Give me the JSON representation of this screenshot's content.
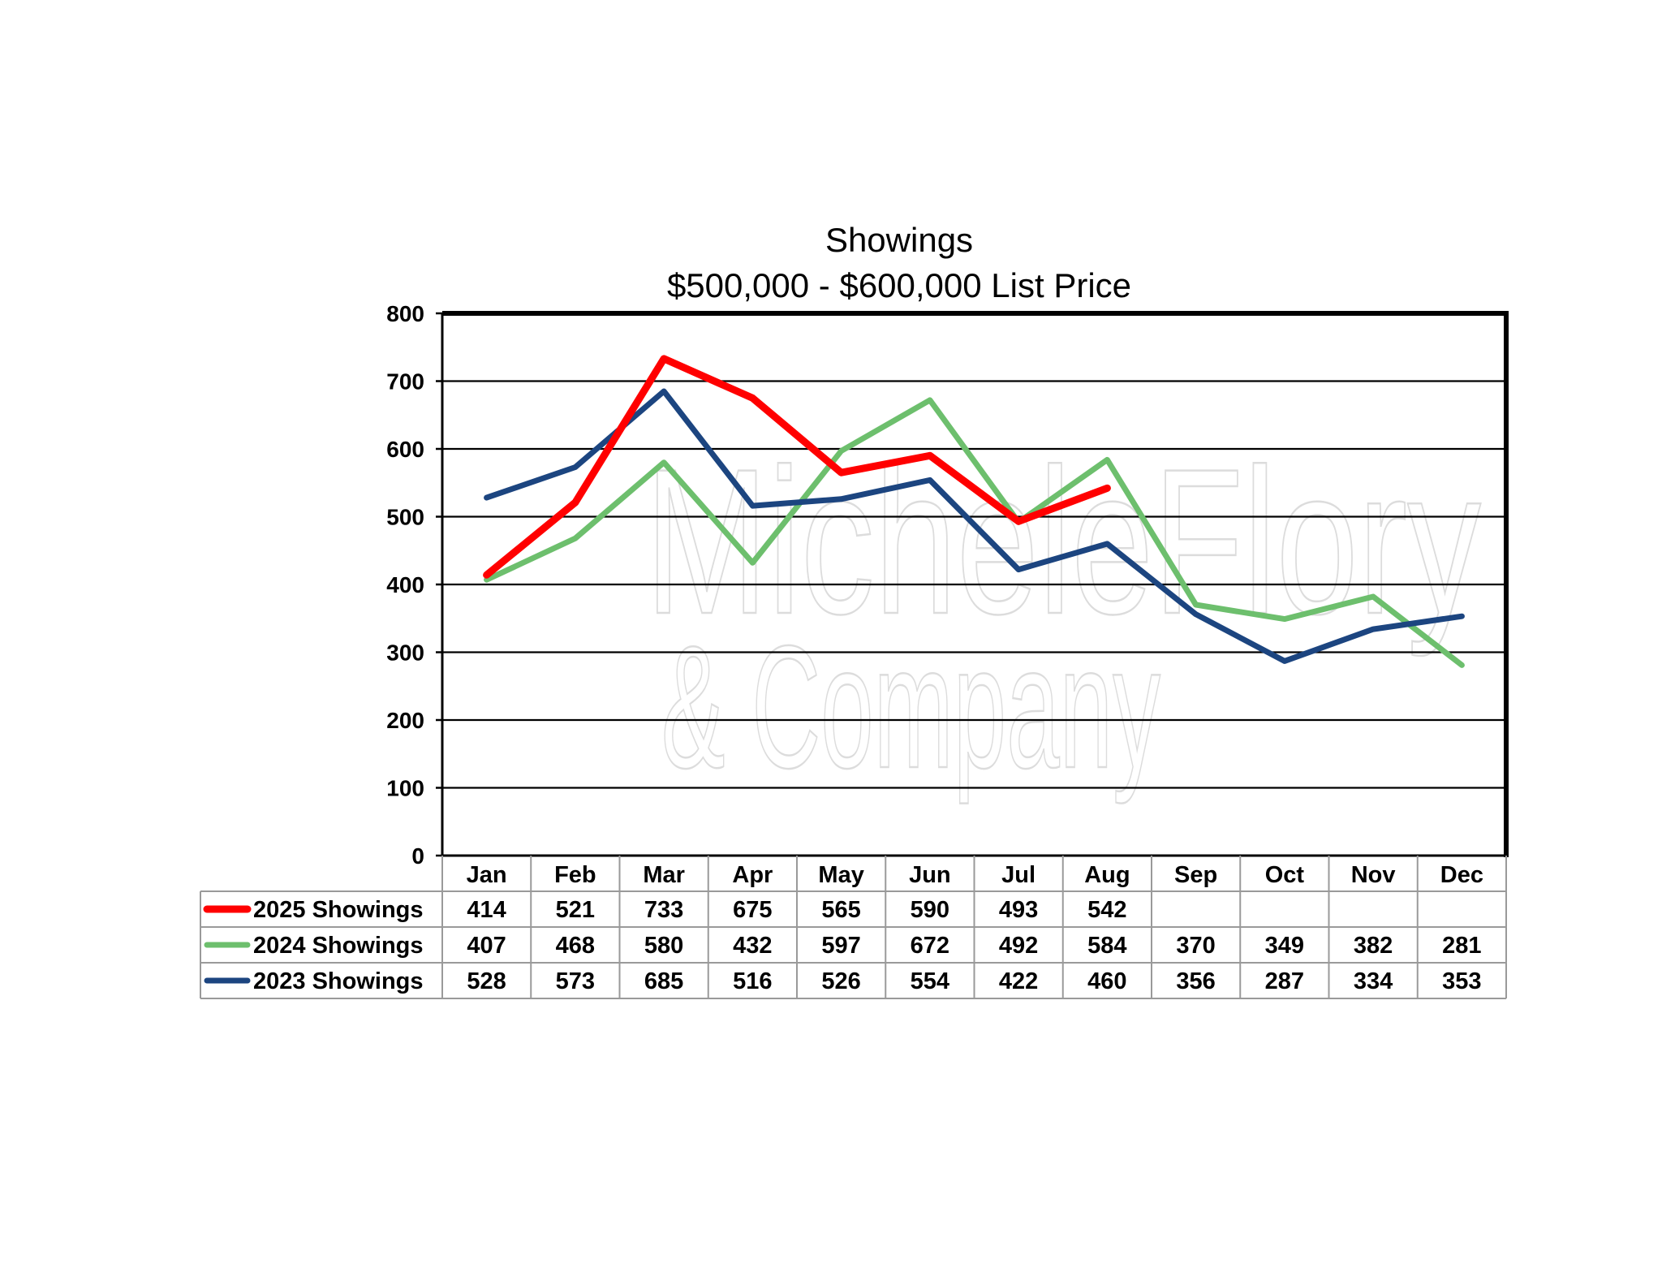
{
  "chart_data": {
    "type": "line",
    "title": "Showings",
    "subtitle": "$500,000 - $600,000 List Price",
    "categories": [
      "Jan",
      "Feb",
      "Mar",
      "Apr",
      "May",
      "Jun",
      "Jul",
      "Aug",
      "Sep",
      "Oct",
      "Nov",
      "Dec"
    ],
    "ylim": [
      0,
      800
    ],
    "yticks": [
      0,
      100,
      200,
      300,
      400,
      500,
      600,
      700,
      800
    ],
    "grid": true,
    "legend": "data-table-left",
    "series": [
      {
        "name": "2025 Showings",
        "color": "#ff0000",
        "values": [
          414,
          521,
          733,
          675,
          565,
          590,
          493,
          542,
          null,
          null,
          null,
          null
        ]
      },
      {
        "name": "2024 Showings",
        "color": "#6dbf6d",
        "values": [
          407,
          468,
          580,
          432,
          597,
          672,
          492,
          584,
          370,
          349,
          382,
          281
        ]
      },
      {
        "name": "2023 Showings",
        "color": "#1c4580",
        "values": [
          528,
          573,
          685,
          516,
          526,
          554,
          422,
          460,
          356,
          287,
          334,
          353
        ]
      }
    ]
  },
  "watermark": {
    "line1": "MicheleFlory",
    "line2": "& Company"
  }
}
